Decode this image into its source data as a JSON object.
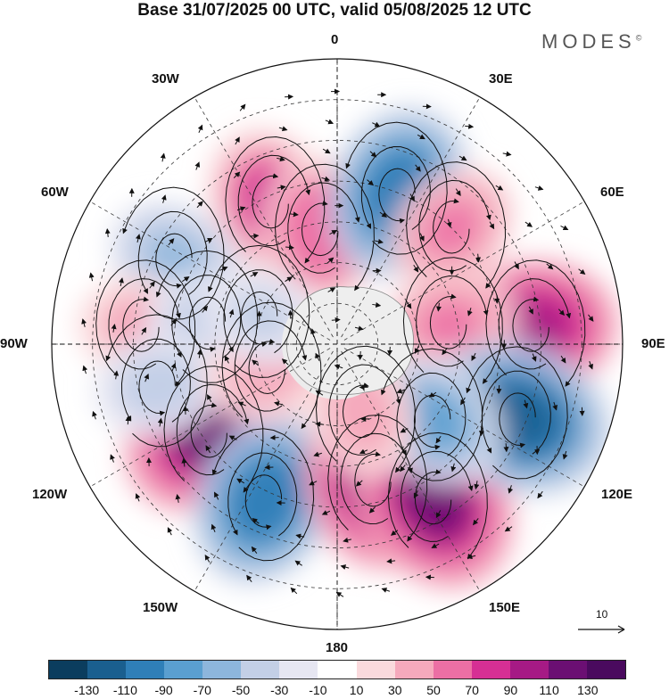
{
  "title": "Base 31/07/2025 00 UTC, valid 05/08/2025 12 UTC",
  "brand": "MODES",
  "brand_mark": "©",
  "longitude_labels": {
    "top": "0",
    "top_right": "30E",
    "right_upper": "60E",
    "right": "90E",
    "right_lower": "120E",
    "bottom_right": "150E",
    "bottom": "180",
    "bottom_left": "150W",
    "left_lower": "120W",
    "left": "90W",
    "left_upper": "60W",
    "top_left": "30W"
  },
  "vector_reference": "10",
  "colorbar": {
    "colors": [
      "#0b3d5e",
      "#1a5f8f",
      "#2f7fb8",
      "#5a9fd0",
      "#8db6dc",
      "#c3cfe6",
      "#e6e6f2",
      "#ffffff",
      "#fadadd",
      "#f5a9bc",
      "#ec6fa4",
      "#d62f94",
      "#a61a85",
      "#6b0f73",
      "#4a0a5e"
    ],
    "tick_labels": [
      "-130",
      "-110",
      "-90",
      "-70",
      "-50",
      "-30",
      "-10",
      "10",
      "30",
      "50",
      "70",
      "90",
      "110",
      "130"
    ]
  },
  "anomaly_field": [
    {
      "name": "pos-30w",
      "lon": -25,
      "lat": -52,
      "value": 80
    },
    {
      "name": "pos-5w",
      "lon": -8,
      "lat": -62,
      "value": 70
    },
    {
      "name": "neg-20e",
      "lon": 22,
      "lat": -50,
      "value": -100
    },
    {
      "name": "pos-45e",
      "lon": 45,
      "lat": -50,
      "value": 55
    },
    {
      "name": "neg-65w",
      "lon": -62,
      "lat": -45,
      "value": -55
    },
    {
      "name": "pos-85w",
      "lon": -85,
      "lat": -42,
      "value": 45
    },
    {
      "name": "neg-80w",
      "lon": -80,
      "lat": -58,
      "value": -40
    },
    {
      "name": "pos-85e",
      "lon": 85,
      "lat": -42,
      "value": 100
    },
    {
      "name": "pos-80e",
      "lon": 80,
      "lat": -62,
      "value": 55
    },
    {
      "name": "pos-125w",
      "lon": -125,
      "lat": -52,
      "value": 115
    },
    {
      "name": "neg-155w",
      "lon": -155,
      "lat": -48,
      "value": -100
    },
    {
      "name": "neg-105w",
      "lon": -103,
      "lat": -45,
      "value": -45
    },
    {
      "name": "pos-165e",
      "lon": 165,
      "lat": -55,
      "value": 105
    },
    {
      "name": "pos-150e",
      "lon": 148,
      "lat": -45,
      "value": 120
    },
    {
      "name": "neg-115e",
      "lon": 112,
      "lat": -42,
      "value": -120
    },
    {
      "name": "neg-125e",
      "lon": 128,
      "lat": -60,
      "value": -70
    },
    {
      "name": "pos-100w",
      "lon": -110,
      "lat": -72,
      "value": 45
    },
    {
      "name": "neg-60w-inner",
      "lon": -70,
      "lat": -70,
      "value": -35
    },
    {
      "name": "pos-150e-inner",
      "lon": 160,
      "lat": -72,
      "value": 50
    }
  ]
}
